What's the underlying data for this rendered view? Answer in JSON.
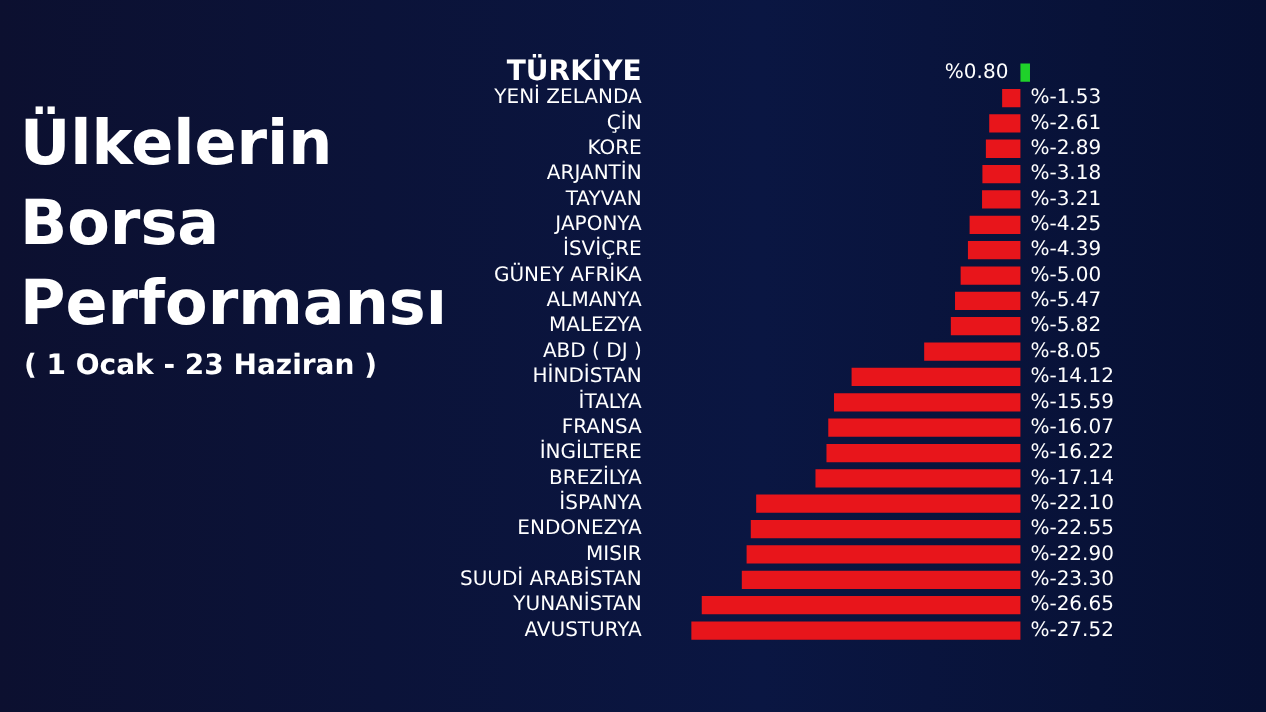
{
  "chart_data": {
    "type": "bar",
    "orientation": "horizontal",
    "title": "Ülkelerin Borsa Performansı",
    "subtitle": "( 1 Ocak - 23 Haziran )",
    "categories": [
      "TÜRKİYE",
      "YENİ ZELANDA",
      "ÇİN",
      "KORE",
      "ARJANTİN",
      "TAYVAN",
      "JAPONYA",
      "İSVİÇRE",
      "GÜNEY AFRİKA",
      "ALMANYA",
      "MALEZYA",
      "ABD ( DJ )",
      "HİNDİSTAN",
      "İTALYA",
      "FRANSA",
      "İNGİLTERE",
      "BREZİLYA",
      "İSPANYA",
      "ENDONEZYA",
      "MISIR",
      "SUUDİ ARABİSTAN",
      "YUNANİSTAN",
      "AVUSTURYA"
    ],
    "values": [
      0.8,
      -1.53,
      -2.61,
      -2.89,
      -3.18,
      -3.21,
      -4.25,
      -4.39,
      -5.0,
      -5.47,
      -5.82,
      -8.05,
      -14.12,
      -15.59,
      -16.07,
      -16.22,
      -17.14,
      -22.1,
      -22.55,
      -22.9,
      -23.3,
      -26.65,
      -27.52
    ],
    "colors": [
      "#1fd12a",
      "#e8151b",
      "#e8151b",
      "#e8151b",
      "#e8151b",
      "#e8151b",
      "#e8151b",
      "#e8151b",
      "#e8151b",
      "#e8151b",
      "#e8151b",
      "#e8151b",
      "#e8151b",
      "#e8151b",
      "#e8151b",
      "#e8151b",
      "#e8151b",
      "#e8151b",
      "#e8151b",
      "#e8151b",
      "#e8151b",
      "#e8151b",
      "#e8151b"
    ],
    "value_labels": [
      "%0.80",
      "%-1.53",
      "%-2.61",
      "%-2.89",
      "%-3.18",
      "%-3.21",
      "%-4.25",
      "%-4.39",
      "%-5.00",
      "%-5.47",
      "%-5.82",
      "%-8.05",
      "%-14.12",
      "%-15.59",
      "%-16.07",
      "%-16.22",
      "%-17.14",
      "%-22.10",
      "%-22.55",
      "%-22.90",
      "%-23.30",
      "%-26.65",
      "%-27.52"
    ],
    "tick_labels": "y",
    "legend": false
  }
}
